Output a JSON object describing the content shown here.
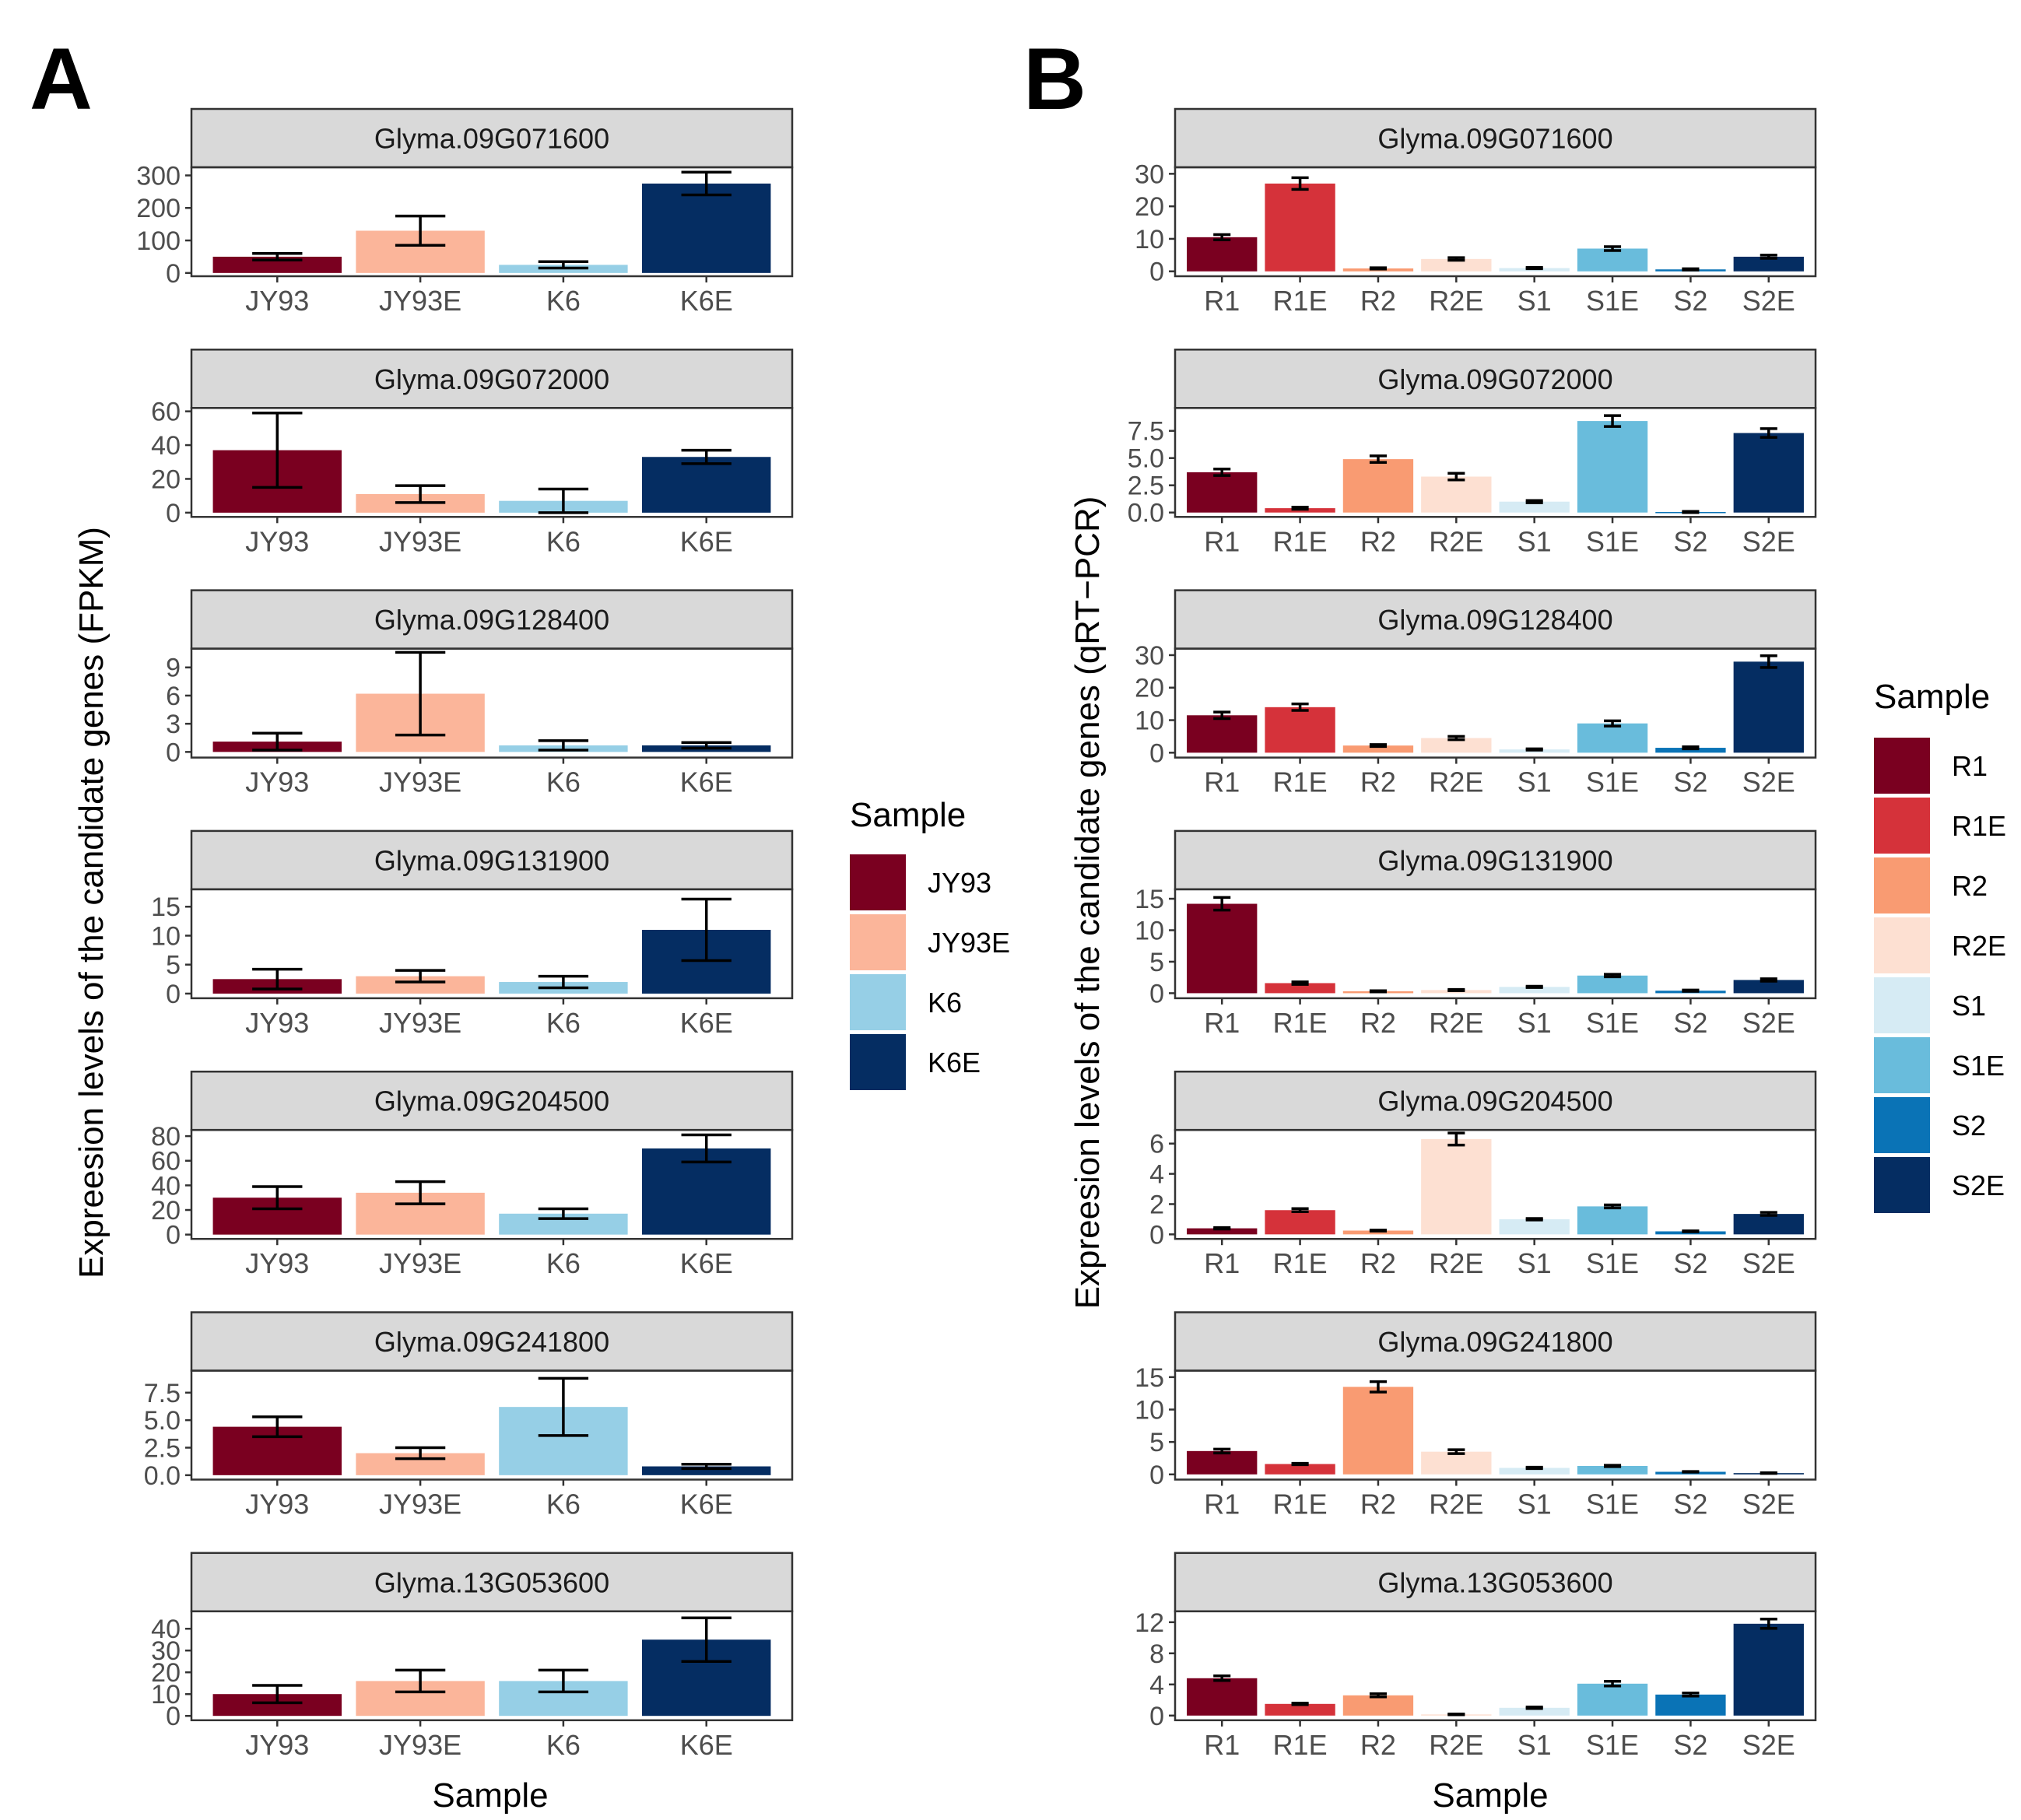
{
  "figure": {
    "panel_a_label": "A",
    "panel_b_label": "B",
    "panel_a_ylabel": "Expreesion levels of the candidate genes (FPKM)",
    "panel_b_ylabel": "Expreesion levels of the candidate genes (qRT−PCR)",
    "xlabel": "Sample"
  },
  "legend_a": {
    "title": "Sample",
    "items": [
      {
        "label": "JY93",
        "color": "#7a0020"
      },
      {
        "label": "JY93E",
        "color": "#fbb59a"
      },
      {
        "label": "K6",
        "color": "#96cfe6"
      },
      {
        "label": "K6E",
        "color": "#052d62"
      }
    ]
  },
  "legend_b": {
    "title": "Sample",
    "items": [
      {
        "label": "R1",
        "color": "#7a0020"
      },
      {
        "label": "R1E",
        "color": "#d5323a"
      },
      {
        "label": "R2",
        "color": "#f99b72"
      },
      {
        "label": "R2E",
        "color": "#fde0d2"
      },
      {
        "label": "S1",
        "color": "#d6ebf4"
      },
      {
        "label": "S1E",
        "color": "#69bcdc"
      },
      {
        "label": "S2",
        "color": "#0a73b6"
      },
      {
        "label": "S2E",
        "color": "#052d62"
      }
    ]
  },
  "chart_data": [
    {
      "panel": "A",
      "type": "bar",
      "title": "Glyma.09G071600",
      "categories": [
        "JY93",
        "JY93E",
        "K6",
        "K6E"
      ],
      "values": [
        50,
        130,
        25,
        275
      ],
      "errors": [
        10,
        45,
        10,
        35
      ],
      "ylim": [
        -10,
        325
      ],
      "yticks": [
        0,
        100,
        200,
        300
      ],
      "ytick_labels": [
        "0",
        "100",
        "200",
        "300"
      ],
      "xlabel": "",
      "ylabel": "Expreesion levels of the candidate genes (FPKM)"
    },
    {
      "panel": "A",
      "type": "bar",
      "title": "Glyma.09G072000",
      "categories": [
        "JY93",
        "JY93E",
        "K6",
        "K6E"
      ],
      "values": [
        37,
        11,
        7,
        33
      ],
      "errors": [
        22,
        5,
        7,
        4
      ],
      "ylim": [
        -2.5,
        62
      ],
      "yticks": [
        0,
        20,
        40,
        60
      ],
      "ytick_labels": [
        "0",
        "20",
        "40",
        "60"
      ],
      "xlabel": "",
      "ylabel": "Expreesion levels of the candidate genes (FPKM)"
    },
    {
      "panel": "A",
      "type": "bar",
      "title": "Glyma.09G128400",
      "categories": [
        "JY93",
        "JY93E",
        "K6",
        "K6E"
      ],
      "values": [
        1.1,
        6.2,
        0.7,
        0.7
      ],
      "errors": [
        0.9,
        4.4,
        0.5,
        0.3
      ],
      "ylim": [
        -0.6,
        11
      ],
      "yticks": [
        0,
        3,
        6,
        9
      ],
      "ytick_labels": [
        "0",
        "3",
        "6",
        "9"
      ],
      "xlabel": "",
      "ylabel": "Expreesion levels of the candidate genes (FPKM)"
    },
    {
      "panel": "A",
      "type": "bar",
      "title": "Glyma.09G131900",
      "categories": [
        "JY93",
        "JY93E",
        "K6",
        "K6E"
      ],
      "values": [
        2.5,
        3.0,
        2.0,
        11.0
      ],
      "errors": [
        1.7,
        1.0,
        1.0,
        5.3
      ],
      "ylim": [
        -0.8,
        18
      ],
      "yticks": [
        0,
        5,
        10,
        15
      ],
      "ytick_labels": [
        "0",
        "5",
        "10",
        "15"
      ],
      "xlabel": "",
      "ylabel": "Expreesion levels of the candidate genes (FPKM)"
    },
    {
      "panel": "A",
      "type": "bar",
      "title": "Glyma.09G204500",
      "categories": [
        "JY93",
        "JY93E",
        "K6",
        "K6E"
      ],
      "values": [
        30,
        34,
        17,
        70
      ],
      "errors": [
        9,
        9,
        4,
        11
      ],
      "ylim": [
        -3.5,
        85
      ],
      "yticks": [
        0,
        20,
        40,
        60,
        80
      ],
      "ytick_labels": [
        "0",
        "20",
        "40",
        "60",
        "80"
      ],
      "xlabel": "",
      "ylabel": "Expreesion levels of the candidate genes (FPKM)"
    },
    {
      "panel": "A",
      "type": "bar",
      "title": "Glyma.09G241800",
      "categories": [
        "JY93",
        "JY93E",
        "K6",
        "K6E"
      ],
      "values": [
        4.4,
        2.0,
        6.2,
        0.8
      ],
      "errors": [
        0.9,
        0.5,
        2.6,
        0.2
      ],
      "ylim": [
        -0.4,
        9.5
      ],
      "yticks": [
        0,
        2.5,
        5,
        7.5
      ],
      "ytick_labels": [
        "0.0",
        "2.5",
        "5.0",
        "7.5"
      ],
      "xlabel": "",
      "ylabel": "Expreesion levels of the candidate genes (FPKM)"
    },
    {
      "panel": "A",
      "type": "bar",
      "title": "Glyma.13G053600",
      "categories": [
        "JY93",
        "JY93E",
        "K6",
        "K6E"
      ],
      "values": [
        10,
        16,
        16,
        35
      ],
      "errors": [
        4,
        5,
        5,
        10
      ],
      "ylim": [
        -2,
        48
      ],
      "yticks": [
        0,
        10,
        20,
        30,
        40
      ],
      "ytick_labels": [
        "0",
        "10",
        "20",
        "30",
        "40"
      ],
      "xlabel": "Sample",
      "ylabel": "Expreesion levels of the candidate genes (FPKM)"
    },
    {
      "panel": "B",
      "type": "bar",
      "title": "Glyma.09G071600",
      "categories": [
        "R1",
        "R1E",
        "R2",
        "R2E",
        "S1",
        "S1E",
        "S2",
        "S2E"
      ],
      "values": [
        10.5,
        27.0,
        0.9,
        3.8,
        1.0,
        7.0,
        0.6,
        4.5
      ],
      "errors": [
        0.8,
        1.8,
        0.2,
        0.4,
        0.2,
        0.6,
        0.2,
        0.5
      ],
      "ylim": [
        -1.5,
        32
      ],
      "yticks": [
        0,
        10,
        20,
        30
      ],
      "ytick_labels": [
        "0",
        "10",
        "20",
        "30"
      ],
      "xlabel": "",
      "ylabel": "Expreesion levels of the candidate genes (qRT−PCR)"
    },
    {
      "panel": "B",
      "type": "bar",
      "title": "Glyma.09G072000",
      "categories": [
        "R1",
        "R1E",
        "R2",
        "R2E",
        "S1",
        "S1E",
        "S2",
        "S2E"
      ],
      "values": [
        3.7,
        0.4,
        4.9,
        3.3,
        1.0,
        8.4,
        0.05,
        7.3
      ],
      "errors": [
        0.3,
        0.1,
        0.3,
        0.3,
        0.1,
        0.5,
        0.05,
        0.4
      ],
      "ylim": [
        -0.4,
        9.6
      ],
      "yticks": [
        0,
        2.5,
        5,
        7.5
      ],
      "ytick_labels": [
        "0.0",
        "2.5",
        "5.0",
        "7.5"
      ],
      "xlabel": "",
      "ylabel": "Expreesion levels of the candidate genes (qRT−PCR)"
    },
    {
      "panel": "B",
      "type": "bar",
      "title": "Glyma.09G128400",
      "categories": [
        "R1",
        "R1E",
        "R2",
        "R2E",
        "S1",
        "S1E",
        "S2",
        "S2E"
      ],
      "values": [
        11.5,
        14.0,
        2.2,
        4.5,
        1.0,
        9.0,
        1.5,
        28.0
      ],
      "errors": [
        1.0,
        1.0,
        0.3,
        0.5,
        0.2,
        0.8,
        0.3,
        1.8
      ],
      "ylim": [
        -1.5,
        32
      ],
      "yticks": [
        0,
        10,
        20,
        30
      ],
      "ytick_labels": [
        "0",
        "10",
        "20",
        "30"
      ],
      "xlabel": "",
      "ylabel": "Expreesion levels of the candidate genes (qRT−PCR)"
    },
    {
      "panel": "B",
      "type": "bar",
      "title": "Glyma.09G131900",
      "categories": [
        "R1",
        "R1E",
        "R2",
        "R2E",
        "S1",
        "S1E",
        "S2",
        "S2E"
      ],
      "values": [
        14.2,
        1.6,
        0.3,
        0.5,
        1.0,
        2.8,
        0.4,
        2.1
      ],
      "errors": [
        1.0,
        0.2,
        0.1,
        0.1,
        0.1,
        0.2,
        0.1,
        0.2
      ],
      "ylim": [
        -0.8,
        16.5
      ],
      "yticks": [
        0,
        5,
        10,
        15
      ],
      "ytick_labels": [
        "0",
        "5",
        "10",
        "15"
      ],
      "xlabel": "",
      "ylabel": "Expreesion levels of the candidate genes (qRT−PCR)"
    },
    {
      "panel": "B",
      "type": "bar",
      "title": "Glyma.09G204500",
      "categories": [
        "R1",
        "R1E",
        "R2",
        "R2E",
        "S1",
        "S1E",
        "S2",
        "S2E"
      ],
      "values": [
        0.4,
        1.6,
        0.25,
        6.3,
        1.0,
        1.85,
        0.2,
        1.35
      ],
      "errors": [
        0.05,
        0.1,
        0.03,
        0.4,
        0.05,
        0.1,
        0.03,
        0.1
      ],
      "ylim": [
        -0.3,
        6.9
      ],
      "yticks": [
        0,
        2,
        4,
        6
      ],
      "ytick_labels": [
        "0",
        "2",
        "4",
        "6"
      ],
      "xlabel": "",
      "ylabel": "Expreesion levels of the candidate genes (qRT−PCR)"
    },
    {
      "panel": "B",
      "type": "bar",
      "title": "Glyma.09G241800",
      "categories": [
        "R1",
        "R1E",
        "R2",
        "R2E",
        "S1",
        "S1E",
        "S2",
        "S2E"
      ],
      "values": [
        3.6,
        1.6,
        13.5,
        3.5,
        1.0,
        1.3,
        0.4,
        0.2
      ],
      "errors": [
        0.3,
        0.1,
        0.8,
        0.3,
        0.1,
        0.1,
        0.05,
        0.05
      ],
      "ylim": [
        -0.8,
        16
      ],
      "yticks": [
        0,
        5,
        10,
        15
      ],
      "ytick_labels": [
        "0",
        "5",
        "10",
        "15"
      ],
      "xlabel": "",
      "ylabel": "Expreesion levels of the candidate genes (qRT−PCR)"
    },
    {
      "panel": "B",
      "type": "bar",
      "title": "Glyma.13G053600",
      "categories": [
        "R1",
        "R1E",
        "R2",
        "R2E",
        "S1",
        "S1E",
        "S2",
        "S2E"
      ],
      "values": [
        4.8,
        1.5,
        2.6,
        0.15,
        1.0,
        4.1,
        2.7,
        11.8
      ],
      "errors": [
        0.3,
        0.1,
        0.2,
        0.05,
        0.1,
        0.3,
        0.2,
        0.6
      ],
      "ylim": [
        -0.6,
        13.4
      ],
      "yticks": [
        0,
        4,
        8,
        12
      ],
      "ytick_labels": [
        "0",
        "4",
        "8",
        "12"
      ],
      "xlabel": "Sample",
      "ylabel": "Expreesion levels of the candidate genes (qRT−PCR)"
    }
  ]
}
